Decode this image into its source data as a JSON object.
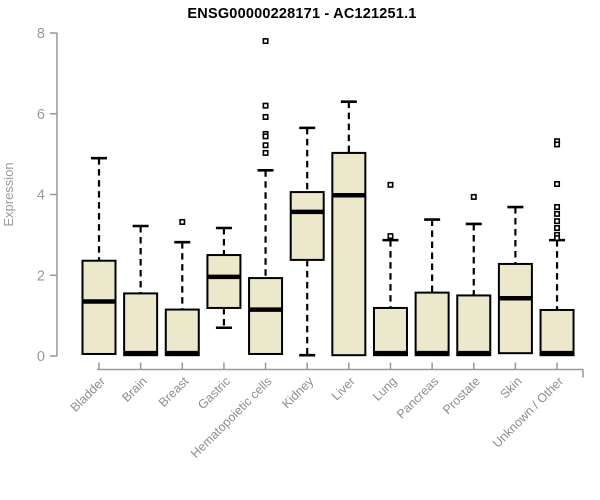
{
  "chart_data": {
    "type": "boxplot",
    "title": "ENSG00000228171 - AC121251.1",
    "ylabel": "Expression",
    "xlabel": "",
    "ylim": [
      0,
      8
    ],
    "yticks": [
      0,
      2,
      4,
      6,
      8
    ],
    "grid": false,
    "legend": "none",
    "categories": [
      "Bladder",
      "Brain",
      "Breast",
      "Gastric",
      "Hematopoietic cells",
      "Kidney",
      "Liver",
      "Lung",
      "Pancreas",
      "Prostate",
      "Skin",
      "Unknown / Other"
    ],
    "series": [
      {
        "label": "Bladder",
        "whisker_low": 0.05,
        "q1": 0.05,
        "median": 1.35,
        "q3": 2.36,
        "whisker_high": 4.9,
        "outliers": []
      },
      {
        "label": "Brain",
        "whisker_low": 0.02,
        "q1": 0.02,
        "median": 0.07,
        "q3": 1.55,
        "whisker_high": 3.22,
        "outliers": []
      },
      {
        "label": "Breast",
        "whisker_low": 0.02,
        "q1": 0.02,
        "median": 0.07,
        "q3": 1.15,
        "whisker_high": 2.82,
        "outliers": [
          3.32
        ]
      },
      {
        "label": "Gastric",
        "whisker_low": 0.7,
        "q1": 1.19,
        "median": 1.96,
        "q3": 2.5,
        "whisker_high": 3.17,
        "outliers": []
      },
      {
        "label": "Hematopoietic cells",
        "whisker_low": 0.05,
        "q1": 0.05,
        "median": 1.15,
        "q3": 1.93,
        "whisker_high": 4.6,
        "outliers": [
          7.8,
          6.2,
          5.92,
          5.5,
          5.44,
          5.22,
          5.03
        ]
      },
      {
        "label": "Kidney",
        "whisker_low": 0.02,
        "q1": 2.38,
        "median": 3.57,
        "q3": 4.06,
        "whisker_high": 5.65,
        "outliers": []
      },
      {
        "label": "Liver",
        "whisker_low": 0.02,
        "q1": 0.02,
        "median": 3.98,
        "q3": 5.03,
        "whisker_high": 6.3,
        "outliers": []
      },
      {
        "label": "Lung",
        "whisker_low": 0.02,
        "q1": 0.02,
        "median": 0.07,
        "q3": 1.19,
        "whisker_high": 2.87,
        "outliers": [
          4.24,
          2.97
        ]
      },
      {
        "label": "Pancreas",
        "whisker_low": 0.02,
        "q1": 0.02,
        "median": 0.07,
        "q3": 1.57,
        "whisker_high": 3.38,
        "outliers": []
      },
      {
        "label": "Prostate",
        "whisker_low": 0.02,
        "q1": 0.02,
        "median": 0.07,
        "q3": 1.5,
        "whisker_high": 3.27,
        "outliers": [
          3.94
        ]
      },
      {
        "label": "Skin",
        "whisker_low": 0.07,
        "q1": 0.07,
        "median": 1.43,
        "q3": 2.28,
        "whisker_high": 3.69,
        "outliers": []
      },
      {
        "label": "Unknown / Other",
        "whisker_low": 0.02,
        "q1": 0.02,
        "median": 0.07,
        "q3": 1.14,
        "whisker_high": 2.87,
        "outliers": [
          5.32,
          5.24,
          4.26,
          3.69,
          3.52,
          3.34,
          3.17,
          3.0,
          2.92
        ]
      }
    ],
    "colors": {
      "background": "#ffffff",
      "box_fill": "#ece8cb",
      "box_border": "#000000",
      "median": "#000000",
      "whisker": "#000000",
      "outlier_border": "#000000",
      "outlier_fill": "#ffffff",
      "axis": "#999999",
      "y_tick_label": "#999999",
      "x_tick_label": "#8e8e8e",
      "ylabel_color": "#999999",
      "title_color": "#000000"
    }
  }
}
